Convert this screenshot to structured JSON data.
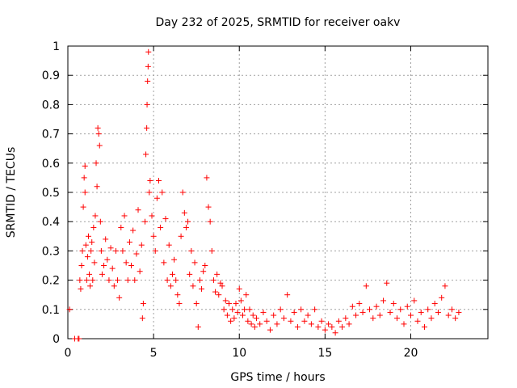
{
  "chart_data": {
    "type": "scatter",
    "title": "Day 232 of 2025, SRMTID for receiver oakv",
    "xlabel": "GPS time / hours",
    "ylabel": "SRMTID / TECUs",
    "xlim": [
      0,
      24.5
    ],
    "ylim": [
      0,
      1
    ],
    "grid": true,
    "marker": "plus",
    "color": "#ff0000",
    "x_ticks": [
      0,
      5,
      10,
      15,
      20
    ],
    "x_tick_labels": [
      "0",
      "5",
      "10",
      "15",
      "20"
    ],
    "y_ticks": [
      0,
      0.1,
      0.2,
      0.3,
      0.4,
      0.5,
      0.6,
      0.7,
      0.8,
      0.9,
      1
    ],
    "y_tick_labels": [
      "0",
      "0.1",
      "0.2",
      "0.3",
      "0.4",
      "0.5",
      "0.6",
      "0.7",
      "0.8",
      "0.9",
      "1"
    ],
    "series": [
      {
        "name": "SRMTID",
        "points": [
          [
            0.1,
            0.1
          ],
          [
            0.4,
            0.0
          ],
          [
            0.6,
            0.0
          ],
          [
            0.65,
            0.0
          ],
          [
            0.7,
            0.2
          ],
          [
            0.75,
            0.17
          ],
          [
            0.8,
            0.25
          ],
          [
            0.85,
            0.3
          ],
          [
            0.9,
            0.45
          ],
          [
            0.95,
            0.55
          ],
          [
            1.0,
            0.59
          ],
          [
            1.0,
            0.5
          ],
          [
            1.05,
            0.32
          ],
          [
            1.1,
            0.2
          ],
          [
            1.15,
            0.28
          ],
          [
            1.2,
            0.35
          ],
          [
            1.25,
            0.22
          ],
          [
            1.3,
            0.18
          ],
          [
            1.35,
            0.3
          ],
          [
            1.4,
            0.33
          ],
          [
            1.45,
            0.2
          ],
          [
            1.5,
            0.38
          ],
          [
            1.55,
            0.26
          ],
          [
            1.6,
            0.42
          ],
          [
            1.65,
            0.6
          ],
          [
            1.7,
            0.52
          ],
          [
            1.75,
            0.72
          ],
          [
            1.8,
            0.7
          ],
          [
            1.85,
            0.66
          ],
          [
            1.9,
            0.4
          ],
          [
            1.95,
            0.3
          ],
          [
            2.0,
            0.22
          ],
          [
            2.1,
            0.25
          ],
          [
            2.2,
            0.34
          ],
          [
            2.3,
            0.27
          ],
          [
            2.4,
            0.2
          ],
          [
            2.5,
            0.31
          ],
          [
            2.6,
            0.24
          ],
          [
            2.7,
            0.18
          ],
          [
            2.8,
            0.3
          ],
          [
            2.9,
            0.2
          ],
          [
            3.0,
            0.14
          ],
          [
            3.1,
            0.38
          ],
          [
            3.2,
            0.3
          ],
          [
            3.3,
            0.42
          ],
          [
            3.4,
            0.26
          ],
          [
            3.5,
            0.2
          ],
          [
            3.6,
            0.33
          ],
          [
            3.7,
            0.25
          ],
          [
            3.8,
            0.37
          ],
          [
            3.9,
            0.2
          ],
          [
            4.0,
            0.29
          ],
          [
            4.1,
            0.44
          ],
          [
            4.2,
            0.23
          ],
          [
            4.3,
            0.32
          ],
          [
            4.35,
            0.07
          ],
          [
            4.4,
            0.12
          ],
          [
            4.5,
            0.4
          ],
          [
            4.55,
            0.63
          ],
          [
            4.6,
            0.72
          ],
          [
            4.62,
            0.8
          ],
          [
            4.65,
            0.88
          ],
          [
            4.68,
            0.93
          ],
          [
            4.7,
            0.98
          ],
          [
            4.75,
            0.5
          ],
          [
            4.8,
            0.54
          ],
          [
            4.9,
            0.42
          ],
          [
            5.0,
            0.35
          ],
          [
            5.1,
            0.3
          ],
          [
            5.2,
            0.48
          ],
          [
            5.3,
            0.54
          ],
          [
            5.4,
            0.38
          ],
          [
            5.5,
            0.5
          ],
          [
            5.6,
            0.26
          ],
          [
            5.7,
            0.41
          ],
          [
            5.8,
            0.2
          ],
          [
            5.9,
            0.32
          ],
          [
            6.0,
            0.18
          ],
          [
            6.1,
            0.22
          ],
          [
            6.2,
            0.27
          ],
          [
            6.3,
            0.2
          ],
          [
            6.4,
            0.15
          ],
          [
            6.5,
            0.12
          ],
          [
            6.6,
            0.35
          ],
          [
            6.7,
            0.5
          ],
          [
            6.8,
            0.43
          ],
          [
            6.9,
            0.38
          ],
          [
            7.0,
            0.4
          ],
          [
            7.1,
            0.22
          ],
          [
            7.2,
            0.3
          ],
          [
            7.3,
            0.18
          ],
          [
            7.4,
            0.26
          ],
          [
            7.5,
            0.12
          ],
          [
            7.6,
            0.04
          ],
          [
            7.7,
            0.2
          ],
          [
            7.8,
            0.17
          ],
          [
            7.9,
            0.23
          ],
          [
            8.0,
            0.25
          ],
          [
            8.1,
            0.55
          ],
          [
            8.2,
            0.45
          ],
          [
            8.3,
            0.4
          ],
          [
            8.4,
            0.3
          ],
          [
            8.5,
            0.2
          ],
          [
            8.6,
            0.16
          ],
          [
            8.7,
            0.22
          ],
          [
            8.8,
            0.15
          ],
          [
            8.9,
            0.19
          ],
          [
            9.0,
            0.18
          ],
          [
            9.1,
            0.1
          ],
          [
            9.2,
            0.13
          ],
          [
            9.3,
            0.08
          ],
          [
            9.4,
            0.12
          ],
          [
            9.5,
            0.06
          ],
          [
            9.6,
            0.1
          ],
          [
            9.7,
            0.07
          ],
          [
            9.8,
            0.12
          ],
          [
            9.9,
            0.09
          ],
          [
            10.0,
            0.17
          ],
          [
            10.1,
            0.13
          ],
          [
            10.2,
            0.08
          ],
          [
            10.3,
            0.1
          ],
          [
            10.4,
            0.15
          ],
          [
            10.5,
            0.06
          ],
          [
            10.6,
            0.1
          ],
          [
            10.7,
            0.05
          ],
          [
            10.8,
            0.08
          ],
          [
            10.9,
            0.04
          ],
          [
            11.0,
            0.07
          ],
          [
            11.2,
            0.05
          ],
          [
            11.4,
            0.09
          ],
          [
            11.6,
            0.06
          ],
          [
            11.8,
            0.03
          ],
          [
            12.0,
            0.08
          ],
          [
            12.2,
            0.05
          ],
          [
            12.4,
            0.1
          ],
          [
            12.6,
            0.07
          ],
          [
            12.8,
            0.15
          ],
          [
            13.0,
            0.06
          ],
          [
            13.2,
            0.09
          ],
          [
            13.4,
            0.04
          ],
          [
            13.6,
            0.1
          ],
          [
            13.8,
            0.06
          ],
          [
            14.0,
            0.08
          ],
          [
            14.2,
            0.05
          ],
          [
            14.4,
            0.1
          ],
          [
            14.6,
            0.04
          ],
          [
            14.8,
            0.06
          ],
          [
            15.0,
            0.03
          ],
          [
            15.2,
            0.05
          ],
          [
            15.4,
            0.04
          ],
          [
            15.6,
            0.02
          ],
          [
            15.8,
            0.06
          ],
          [
            16.0,
            0.04
          ],
          [
            16.2,
            0.07
          ],
          [
            16.4,
            0.05
          ],
          [
            16.6,
            0.11
          ],
          [
            16.8,
            0.08
          ],
          [
            17.0,
            0.12
          ],
          [
            17.2,
            0.09
          ],
          [
            17.4,
            0.18
          ],
          [
            17.6,
            0.1
          ],
          [
            17.8,
            0.07
          ],
          [
            18.0,
            0.11
          ],
          [
            18.2,
            0.08
          ],
          [
            18.4,
            0.13
          ],
          [
            18.6,
            0.19
          ],
          [
            18.8,
            0.09
          ],
          [
            19.0,
            0.12
          ],
          [
            19.2,
            0.07
          ],
          [
            19.4,
            0.1
          ],
          [
            19.6,
            0.05
          ],
          [
            19.8,
            0.11
          ],
          [
            20.0,
            0.08
          ],
          [
            20.2,
            0.13
          ],
          [
            20.4,
            0.06
          ],
          [
            20.6,
            0.09
          ],
          [
            20.8,
            0.04
          ],
          [
            21.0,
            0.1
          ],
          [
            21.2,
            0.07
          ],
          [
            21.4,
            0.12
          ],
          [
            21.6,
            0.09
          ],
          [
            21.8,
            0.14
          ],
          [
            22.0,
            0.18
          ],
          [
            22.2,
            0.08
          ],
          [
            22.4,
            0.1
          ],
          [
            22.6,
            0.07
          ],
          [
            22.8,
            0.09
          ]
        ]
      }
    ]
  }
}
